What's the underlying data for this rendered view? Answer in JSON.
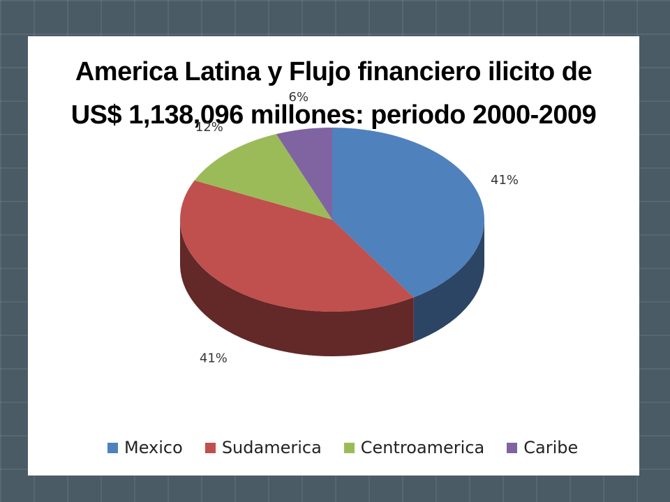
{
  "chart_data": {
    "type": "pie",
    "title": "America Latina y Flujo financiero ilicito de",
    "subtitle": "US$ 1,138,096 millones: periodo 2000-2009",
    "categories": [
      "Mexico",
      "Sudamerica",
      "Centroamerica",
      "Caribe"
    ],
    "values": [
      41,
      41,
      12,
      6
    ],
    "labels": [
      "41%",
      "41%",
      "12%",
      "6%"
    ],
    "colors": [
      "#4f81bd",
      "#c0504d",
      "#9bbb59",
      "#8064a2"
    ],
    "side_colors": [
      "#2c4565",
      "#632828",
      "#56692f",
      "#453661"
    ],
    "legend_position": "bottom",
    "style": "3d"
  }
}
